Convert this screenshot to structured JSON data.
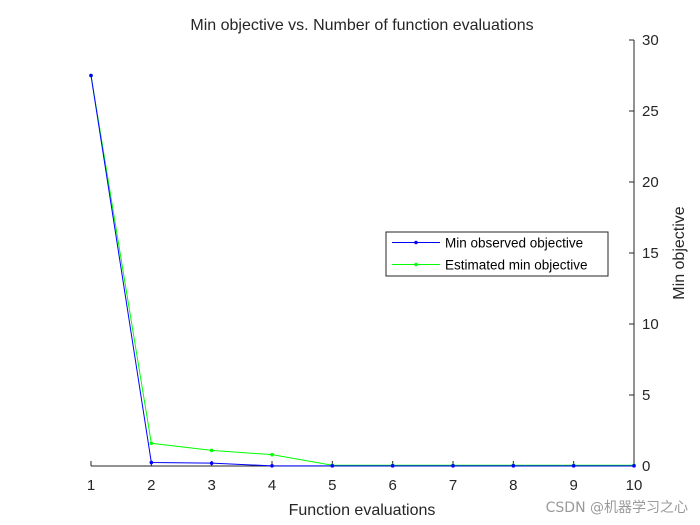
{
  "chart_data": {
    "type": "line",
    "title": "Min objective vs. Number of function evaluations",
    "xlabel": "Function evaluations",
    "ylabel": "Min objective",
    "xlim": [
      1,
      10
    ],
    "ylim": [
      0,
      30
    ],
    "xticks": [
      "1",
      "2",
      "3",
      "4",
      "5",
      "6",
      "7",
      "8",
      "9",
      "10"
    ],
    "yticks": [
      "0",
      "5",
      "10",
      "15",
      "20",
      "25",
      "30"
    ],
    "y_axis_location": "right",
    "grid": false,
    "legend_position": "right",
    "x": [
      1,
      2,
      3,
      4,
      5,
      6,
      7,
      8,
      9,
      10
    ],
    "series": [
      {
        "name": "Min observed objective",
        "color": "#0000ff",
        "marker": "dot",
        "values": [
          27.5,
          0.25,
          0.2,
          0.01,
          0.01,
          0.01,
          0.01,
          0.01,
          0.01,
          0.01
        ]
      },
      {
        "name": "Estimated min objective",
        "color": "#00ff00",
        "marker": "dot",
        "values": [
          27.5,
          1.6,
          1.1,
          0.8,
          0.05,
          0.05,
          0.05,
          0.05,
          0.05,
          0.05
        ]
      }
    ]
  },
  "watermark": "CSDN @机器学习之心"
}
